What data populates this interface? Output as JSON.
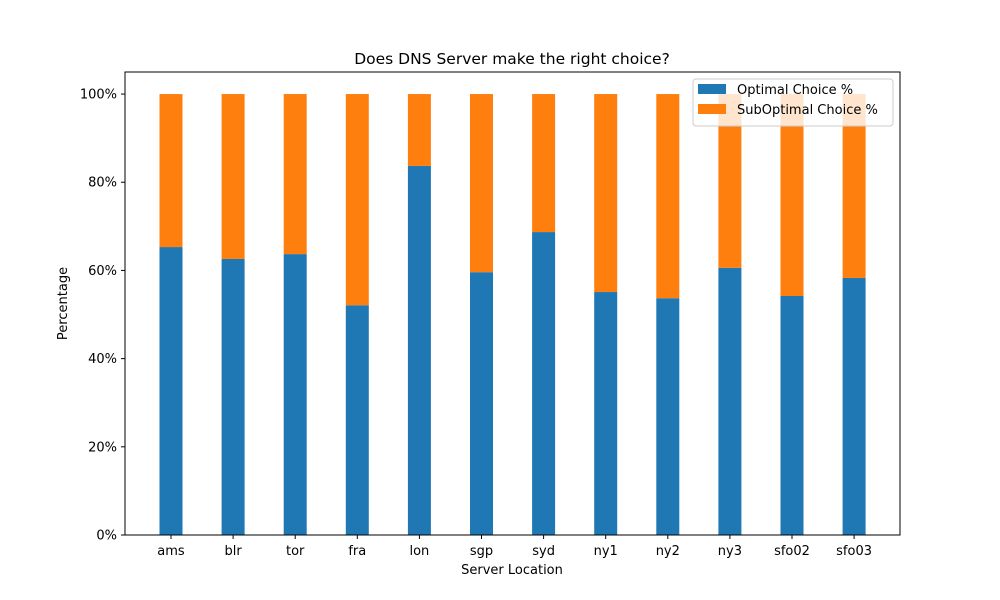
{
  "chart_data": {
    "type": "bar",
    "stacked": true,
    "title": "Does DNS Server make the right choice?",
    "xlabel": "Server Location",
    "ylabel": "Percentage",
    "ylim": [
      0,
      105
    ],
    "yticks": [
      "0%",
      "20%",
      "40%",
      "60%",
      "80%",
      "100%"
    ],
    "categories": [
      "ams",
      "blr",
      "tor",
      "fra",
      "lon",
      "sgp",
      "syd",
      "ny1",
      "ny2",
      "ny3",
      "sfo02",
      "sfo03"
    ],
    "series": [
      {
        "name": "Optimal Choice %",
        "color": "#1f77b4",
        "values": [
          65.3,
          62.6,
          63.7,
          52.1,
          83.7,
          59.6,
          68.7,
          55.1,
          53.7,
          60.6,
          54.2,
          58.3
        ]
      },
      {
        "name": "SubOptimal Choice %",
        "color": "#ff7f0e",
        "values": [
          34.7,
          37.4,
          36.3,
          47.9,
          16.3,
          40.4,
          31.3,
          44.9,
          46.3,
          39.4,
          45.8,
          41.7
        ]
      }
    ],
    "legend_position": "top-right",
    "grid": false
  }
}
